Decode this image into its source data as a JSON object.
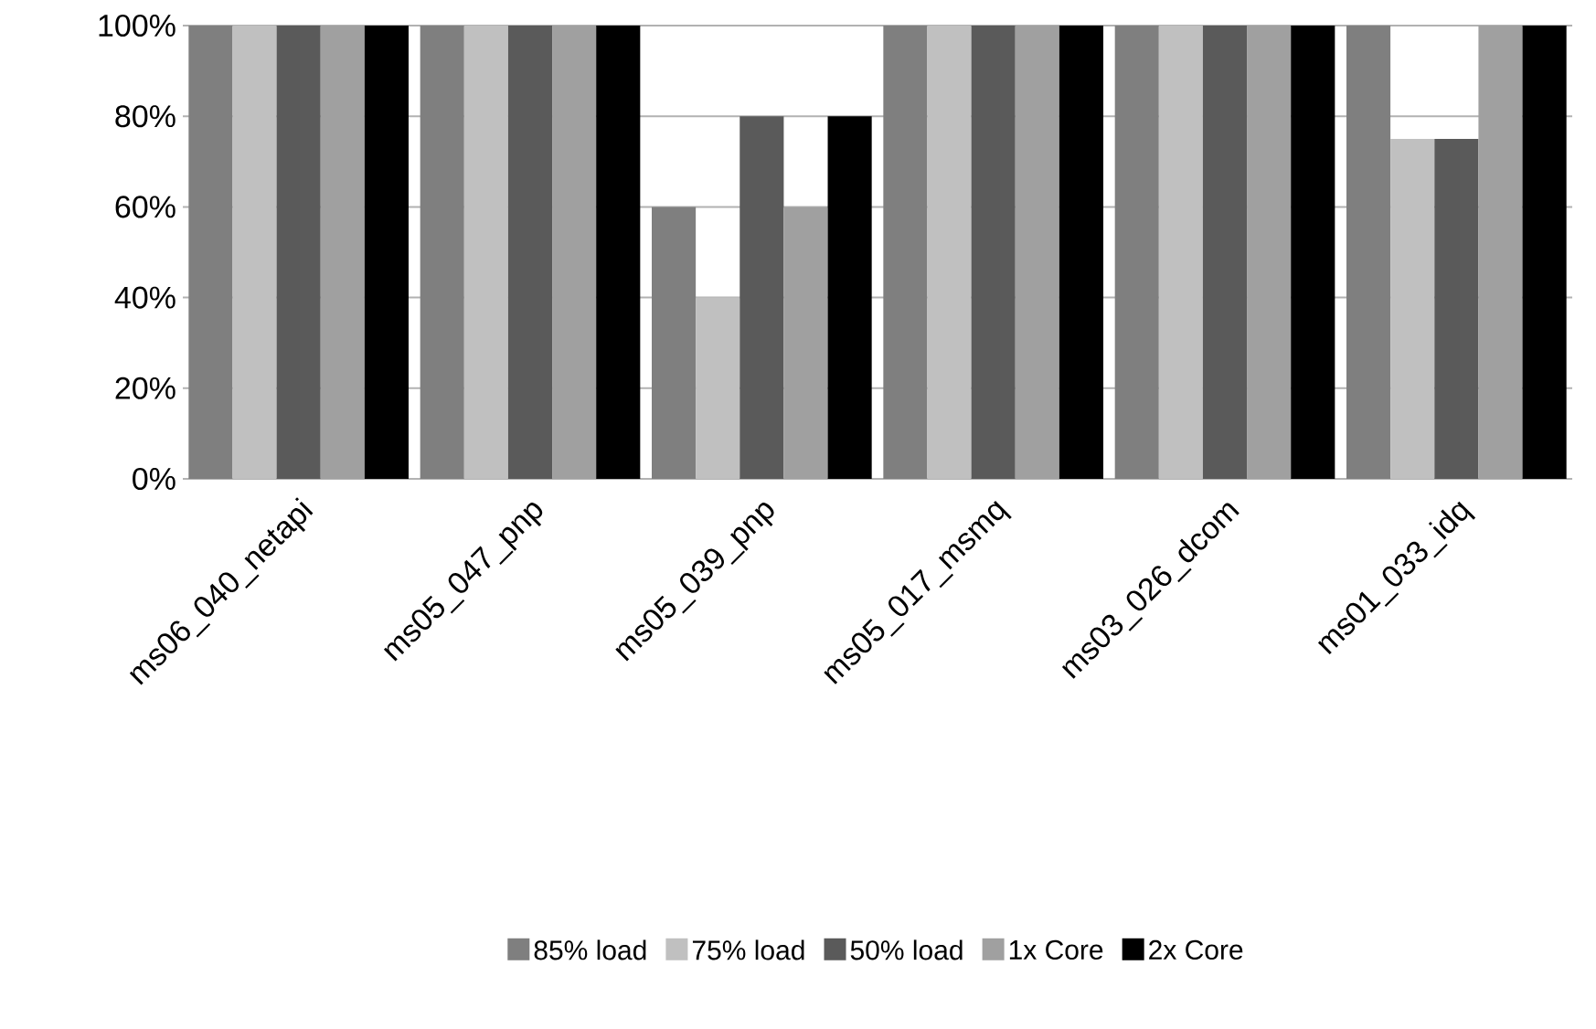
{
  "chart_data": {
    "type": "bar",
    "categories": [
      "ms06_040_netapi",
      "ms05_047_pnp",
      "ms05_039_pnp",
      "ms05_017_msmq",
      "ms03_026_dcom",
      "ms01_033_idq"
    ],
    "series": [
      {
        "name": "85% load",
        "color": "#7f7f7f",
        "values": [
          100,
          100,
          60,
          100,
          100,
          100
        ]
      },
      {
        "name": "75% load",
        "color": "#c0c0c0",
        "values": [
          100,
          100,
          40,
          100,
          100,
          75
        ]
      },
      {
        "name": "50% load",
        "color": "#5a5a5a",
        "values": [
          100,
          100,
          80,
          100,
          100,
          75
        ]
      },
      {
        "name": "1x Core",
        "color": "#a0a0a0",
        "values": [
          100,
          100,
          60,
          100,
          100,
          100
        ]
      },
      {
        "name": "2x Core",
        "color": "#000000",
        "values": [
          100,
          100,
          80,
          100,
          100,
          100
        ]
      }
    ],
    "ylim": [
      0,
      100
    ],
    "yticks": [
      {
        "value": 0,
        "label": "0%"
      },
      {
        "value": 20,
        "label": "20%"
      },
      {
        "value": 40,
        "label": "40%"
      },
      {
        "value": 60,
        "label": "60%"
      },
      {
        "value": 80,
        "label": "80%"
      },
      {
        "value": 100,
        "label": "100%"
      }
    ],
    "grid": "y",
    "legend": "bottom"
  }
}
